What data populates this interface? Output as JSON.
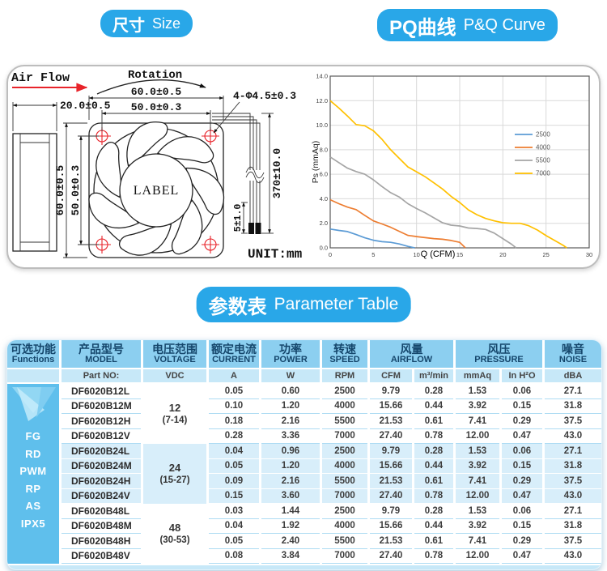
{
  "badges": {
    "size": {
      "zh": "尺寸",
      "en": "Size"
    },
    "pq": {
      "zh": "PQ曲线",
      "en": "P&Q Curve"
    },
    "param": {
      "zh": "参数表",
      "en": "Parameter Table"
    }
  },
  "drawing": {
    "air_flow": "Air Flow",
    "rotation": "Rotation",
    "dim_depth": "20.0±0.5",
    "dim_width_outer": "60.0±0.5",
    "dim_width_holes": "50.0±0.3",
    "dim_height_outer": "60.0±0.5",
    "dim_height_holes": "50.0±0.3",
    "dim_holes": "4-Φ4.5±0.3",
    "dim_wire_stub": "5±1.0",
    "dim_wire_length": "370±10.0",
    "hub_label": "LABEL",
    "unit": "UNIT:mm"
  },
  "chart_data": {
    "type": "line",
    "title": "",
    "xlabel": "Q (CFM)",
    "ylabel": "Ps (mmAq)",
    "xlim": [
      0,
      30
    ],
    "ylim": [
      0,
      14
    ],
    "xticks": [
      0,
      5,
      10,
      15,
      20,
      25,
      30
    ],
    "yticks": [
      "0.0",
      "2.0",
      "4.0",
      "6.0",
      "8.0",
      "10.0",
      "12.0",
      "14.0"
    ],
    "grid": true,
    "legend_position": "inside-right",
    "series": [
      {
        "name": "2500",
        "color": "#5b9bd5",
        "points": [
          [
            0,
            1.53
          ],
          [
            1,
            1.42
          ],
          [
            2,
            1.33
          ],
          [
            3,
            1.08
          ],
          [
            4,
            0.82
          ],
          [
            5,
            0.62
          ],
          [
            6,
            0.5
          ],
          [
            7,
            0.45
          ],
          [
            8,
            0.32
          ],
          [
            9,
            0.12
          ],
          [
            9.79,
            0
          ]
        ]
      },
      {
        "name": "4000",
        "color": "#ed7d31",
        "points": [
          [
            0,
            3.92
          ],
          [
            1,
            3.6
          ],
          [
            2,
            3.32
          ],
          [
            3,
            3.12
          ],
          [
            4,
            2.65
          ],
          [
            5,
            2.2
          ],
          [
            6,
            1.95
          ],
          [
            7,
            1.68
          ],
          [
            8,
            1.35
          ],
          [
            9,
            1.02
          ],
          [
            10,
            0.92
          ],
          [
            11,
            0.83
          ],
          [
            12,
            0.75
          ],
          [
            13,
            0.7
          ],
          [
            14,
            0.6
          ],
          [
            15,
            0.45
          ],
          [
            15.66,
            0
          ]
        ]
      },
      {
        "name": "5500",
        "color": "#a5a5a5",
        "points": [
          [
            0,
            7.41
          ],
          [
            1,
            6.95
          ],
          [
            2,
            6.5
          ],
          [
            3,
            6.22
          ],
          [
            4,
            6.0
          ],
          [
            5,
            5.55
          ],
          [
            6,
            5.0
          ],
          [
            7,
            4.5
          ],
          [
            8,
            4.15
          ],
          [
            9,
            3.6
          ],
          [
            10,
            3.2
          ],
          [
            11,
            2.85
          ],
          [
            12,
            2.45
          ],
          [
            13,
            2.05
          ],
          [
            14,
            1.85
          ],
          [
            15,
            1.78
          ],
          [
            16,
            1.62
          ],
          [
            17,
            1.58
          ],
          [
            18,
            1.5
          ],
          [
            19,
            1.2
          ],
          [
            20,
            0.75
          ],
          [
            21,
            0.3
          ],
          [
            21.53,
            0
          ]
        ]
      },
      {
        "name": "7000",
        "color": "#ffc000",
        "points": [
          [
            0,
            12.0
          ],
          [
            1,
            11.4
          ],
          [
            2,
            10.75
          ],
          [
            3,
            10.05
          ],
          [
            4,
            9.95
          ],
          [
            5,
            9.55
          ],
          [
            6,
            8.85
          ],
          [
            7,
            8.0
          ],
          [
            8,
            7.3
          ],
          [
            9,
            6.6
          ],
          [
            10,
            6.2
          ],
          [
            11,
            5.8
          ],
          [
            12,
            5.3
          ],
          [
            13,
            4.8
          ],
          [
            14,
            4.2
          ],
          [
            15,
            3.7
          ],
          [
            16,
            3.1
          ],
          [
            17,
            2.7
          ],
          [
            18,
            2.4
          ],
          [
            19,
            2.2
          ],
          [
            20,
            2.05
          ],
          [
            21,
            2.0
          ],
          [
            22,
            2.0
          ],
          [
            23,
            1.8
          ],
          [
            24,
            1.45
          ],
          [
            25,
            1.0
          ],
          [
            26,
            0.6
          ],
          [
            27,
            0.2
          ],
          [
            27.4,
            0
          ]
        ]
      }
    ]
  },
  "table": {
    "headers": [
      {
        "zh": "可选功能",
        "en": "Functions"
      },
      {
        "zh": "产品型号",
        "en": "MODEL"
      },
      {
        "zh": "电压范围",
        "en": "VOLTAGE"
      },
      {
        "zh": "额定电流",
        "en": "CURRENT"
      },
      {
        "zh": "功率",
        "en": "POWER"
      },
      {
        "zh": "转速",
        "en": "SPEED"
      },
      {
        "zh": "风量",
        "en": "AIRFLOW"
      },
      {
        "zh": "风压",
        "en": "PRESSURE"
      },
      {
        "zh": "噪音",
        "en": "NOISE"
      }
    ],
    "units": {
      "part_no": "Part NO:",
      "vdc": "VDC",
      "a": "A",
      "w": "W",
      "rpm": "RPM",
      "cfm": "CFM",
      "m3min": "m³/min",
      "mmaq": "mmAq",
      "inh2o": "In H²O",
      "dba": "dBA"
    },
    "functions": [
      "FG",
      "RD",
      "PWM",
      "RP",
      "AS",
      "IPX5"
    ],
    "groups": [
      {
        "voltage": "12",
        "range": "(7-14)",
        "rows": [
          {
            "model": "DF6020B12L",
            "current": "0.05",
            "power": "0.60",
            "speed": "2500",
            "cfm": "9.79",
            "m3min": "0.28",
            "mmaq": "1.53",
            "inh2o": "0.06",
            "dba": "27.1"
          },
          {
            "model": "DF6020B12M",
            "current": "0.10",
            "power": "1.20",
            "speed": "4000",
            "cfm": "15.66",
            "m3min": "0.44",
            "mmaq": "3.92",
            "inh2o": "0.15",
            "dba": "31.8"
          },
          {
            "model": "DF6020B12H",
            "current": "0.18",
            "power": "2.16",
            "speed": "5500",
            "cfm": "21.53",
            "m3min": "0.61",
            "mmaq": "7.41",
            "inh2o": "0.29",
            "dba": "37.5"
          },
          {
            "model": "DF6020B12V",
            "current": "0.28",
            "power": "3.36",
            "speed": "7000",
            "cfm": "27.40",
            "m3min": "0.78",
            "mmaq": "12.00",
            "inh2o": "0.47",
            "dba": "43.0"
          }
        ]
      },
      {
        "voltage": "24",
        "range": "(15-27)",
        "rows": [
          {
            "model": "DF6020B24L",
            "current": "0.04",
            "power": "0.96",
            "speed": "2500",
            "cfm": "9.79",
            "m3min": "0.28",
            "mmaq": "1.53",
            "inh2o": "0.06",
            "dba": "27.1"
          },
          {
            "model": "DF6020B24M",
            "current": "0.05",
            "power": "1.20",
            "speed": "4000",
            "cfm": "15.66",
            "m3min": "0.44",
            "mmaq": "3.92",
            "inh2o": "0.15",
            "dba": "31.8"
          },
          {
            "model": "DF6020B24H",
            "current": "0.09",
            "power": "2.16",
            "speed": "5500",
            "cfm": "21.53",
            "m3min": "0.61",
            "mmaq": "7.41",
            "inh2o": "0.29",
            "dba": "37.5"
          },
          {
            "model": "DF6020B24V",
            "current": "0.15",
            "power": "3.60",
            "speed": "7000",
            "cfm": "27.40",
            "m3min": "0.78",
            "mmaq": "12.00",
            "inh2o": "0.47",
            "dba": "43.0"
          }
        ]
      },
      {
        "voltage": "48",
        "range": "(30-53)",
        "rows": [
          {
            "model": "DF6020B48L",
            "current": "0.03",
            "power": "1.44",
            "speed": "2500",
            "cfm": "9.79",
            "m3min": "0.28",
            "mmaq": "1.53",
            "inh2o": "0.06",
            "dba": "27.1"
          },
          {
            "model": "DF6020B48M",
            "current": "0.04",
            "power": "1.92",
            "speed": "4000",
            "cfm": "15.66",
            "m3min": "0.44",
            "mmaq": "3.92",
            "inh2o": "0.15",
            "dba": "31.8"
          },
          {
            "model": "DF6020B48H",
            "current": "0.05",
            "power": "2.40",
            "speed": "5500",
            "cfm": "21.53",
            "m3min": "0.61",
            "mmaq": "7.41",
            "inh2o": "0.29",
            "dba": "37.5"
          },
          {
            "model": "DF6020B48V",
            "current": "0.08",
            "power": "3.84",
            "speed": "7000",
            "cfm": "27.40",
            "m3min": "0.78",
            "mmaq": "12.00",
            "inh2o": "0.47",
            "dba": "43.0"
          }
        ]
      }
    ]
  },
  "colors": {
    "accent_blue": "#29a7e8",
    "table_header": "#8ccff0",
    "table_units": "#c7e8f8",
    "table_alt_row": "#d8eefa",
    "functions_column": "#5fbfec",
    "drawing_red": "#e8232a",
    "chart_border": "#595959",
    "chart_grid": "#d9d9d9"
  }
}
